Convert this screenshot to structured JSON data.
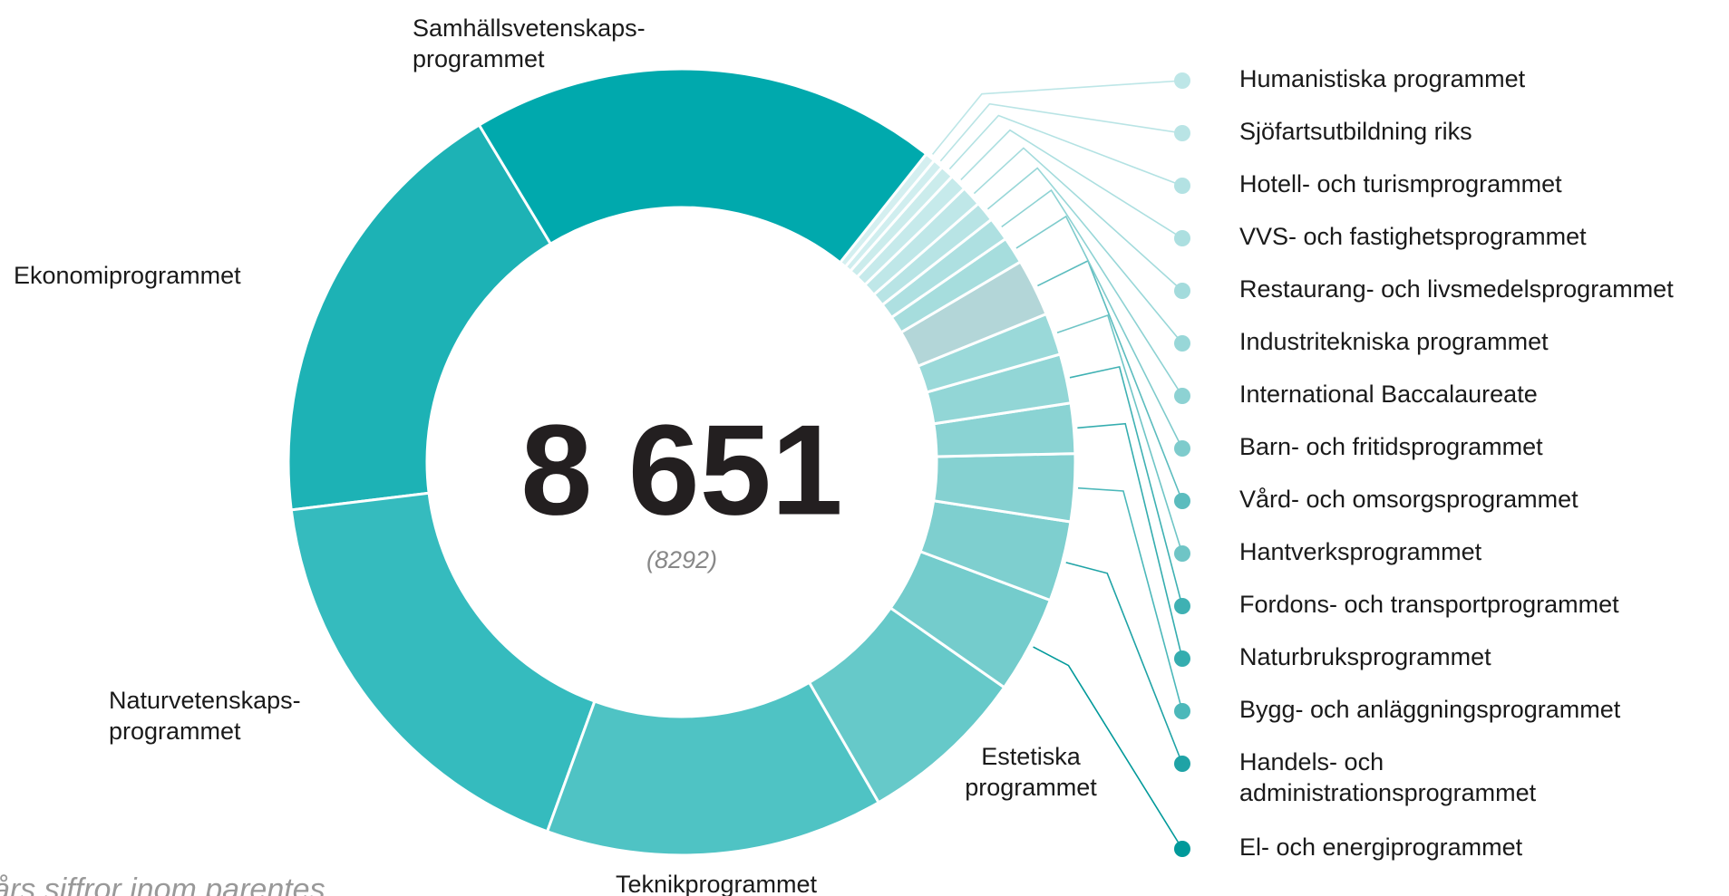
{
  "chart_data": {
    "type": "donut",
    "center_label": "8 651",
    "center_sublabel": "(8292)",
    "note": "års siffror inom parentes",
    "categories": [
      "Samhällsvetenskaps-\nprogrammet",
      "Humanistiska programmet",
      "Sjöfartsutbildning riks",
      "Hotell- och turismprogrammet",
      "VVS- och fastighetsprogrammet",
      "Restaurang- och livsmedelsprogrammet",
      "Industritekniska programmet",
      "International Baccalaureate",
      "Barn- och fritidsprogrammet",
      "Vård- och omsorgsprogrammet",
      "Hantverksprogrammet",
      "Fordons- och transportprogrammet",
      "Naturbruksprogrammet",
      "Bygg- och anläggningsprogrammet",
      "Handels- och\nadministrationsprogrammet",
      "El- och energiprogrammet",
      "Estetiska\nprogrammet",
      "Teknikprogrammet",
      "Naturvetenskaps-\nprogrammet",
      "Ekonomiprogrammet"
    ],
    "values": [
      1668,
      36,
      36,
      48,
      60,
      72,
      72,
      84,
      96,
      204,
      149,
      175,
      178,
      240,
      284,
      346,
      601,
      1202,
      1514,
      1586
    ],
    "colors": [
      "#00a9ad",
      "#d4eff0",
      "#d0eeef",
      "#cbecec",
      "#c6eaeb",
      "#bfe7e8",
      "#b8e4e5",
      "#aee0e1",
      "#a6dddd",
      "#b3d6d8",
      "#9ad9d9",
      "#92d6d6",
      "#8ad3d3",
      "#85d1d1",
      "#7ecfcf",
      "#74cccc",
      "#66c9c9",
      "#4fc3c4",
      "#35bbbe",
      "#1db2b5"
    ],
    "legend_colors": [
      null,
      "#bde6e7",
      "#b9e4e5",
      "#b3e2e3",
      "#acdfe0",
      "#a3dbdc",
      "#98d7d8",
      "#8dd2d3",
      "#7ecbcc",
      "#5bbcbe",
      "#6fc5c6",
      "#3fb1b3",
      "#35adaf",
      "#4cb8ba",
      "#1fa3a6",
      "#00999a",
      null,
      null,
      null,
      null
    ],
    "legend": [
      false,
      true,
      true,
      true,
      true,
      true,
      true,
      true,
      true,
      true,
      true,
      true,
      true,
      true,
      true,
      true,
      false,
      false,
      false,
      false
    ]
  }
}
